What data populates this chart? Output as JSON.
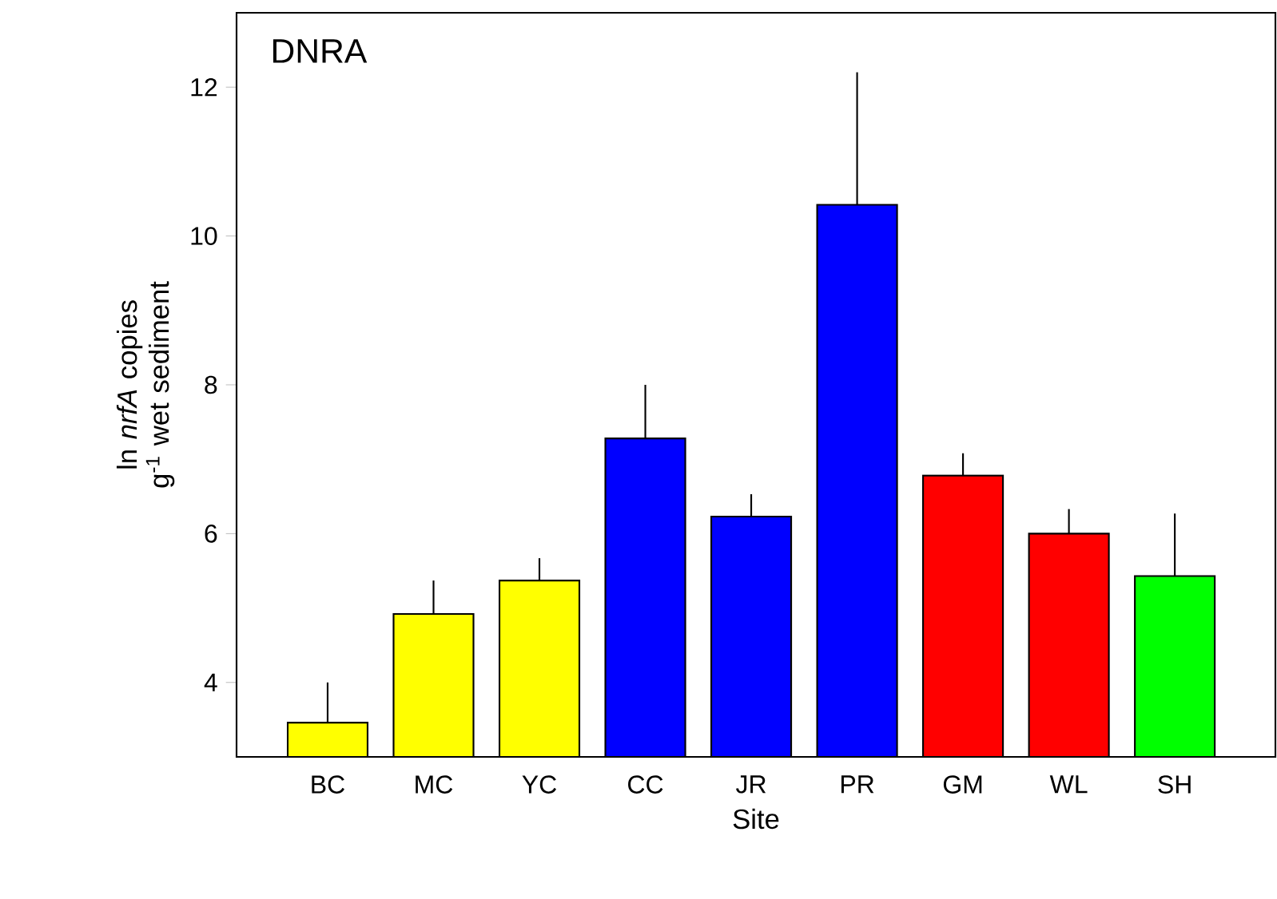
{
  "chart_data": {
    "type": "bar",
    "xlabel": "Site",
    "ylabel": "ln *nrfA* copies g$^{-1}$ wet sediment",
    "annotations": [
      "DNRA"
    ],
    "categories": [
      "BC",
      "MC",
      "YC",
      "CC",
      "JR",
      "PR",
      "GM",
      "WL",
      "SH"
    ],
    "values": [
      3.46,
      4.92,
      5.37,
      7.28,
      6.23,
      10.42,
      6.78,
      6.0,
      5.43
    ],
    "errors": [
      [
        3.46,
        4.0
      ],
      [
        4.92,
        5.37
      ],
      [
        5.37,
        5.67
      ],
      [
        7.28,
        8.0
      ],
      [
        6.23,
        6.53
      ],
      [
        10.42,
        12.2
      ],
      [
        6.78,
        7.08
      ],
      [
        6.0,
        6.33
      ],
      [
        5.43,
        6.27
      ]
    ],
    "colors": [
      "#ffff00",
      "#ffff00",
      "#ffff00",
      "#0000ff",
      "#0000ff",
      "#0000ff",
      "#ff0000",
      "#ff0000",
      "#00ff00"
    ],
    "ylim": [
      3,
      13
    ],
    "yticks": [
      4,
      6,
      8,
      10,
      12
    ]
  }
}
